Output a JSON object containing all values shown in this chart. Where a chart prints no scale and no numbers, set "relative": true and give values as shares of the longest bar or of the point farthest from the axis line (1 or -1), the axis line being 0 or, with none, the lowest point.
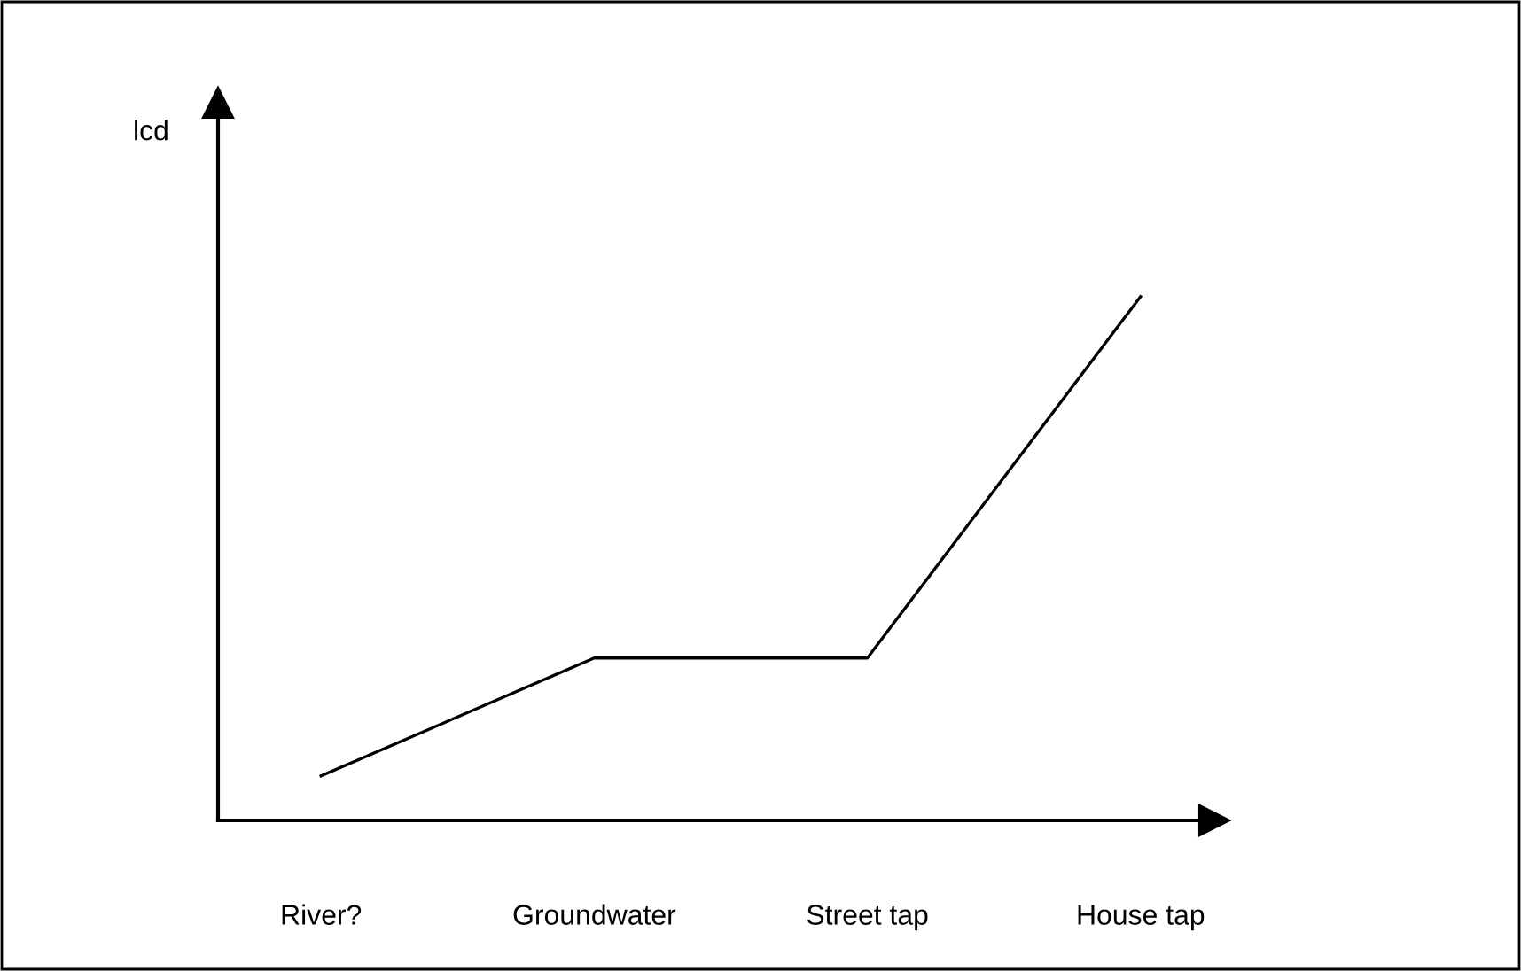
{
  "chart_data": {
    "type": "line",
    "relative": true,
    "annotations": [
      "lcd"
    ],
    "categories": [
      "River?",
      "Groundwater",
      "Street tap",
      "House tap"
    ],
    "series": [
      {
        "color": "#000000",
        "values": [
          0.085,
          0.31,
          0.31,
          1
        ]
      }
    ],
    "grid": false,
    "legend": false,
    "marker": "none",
    "line_style": "solid"
  }
}
